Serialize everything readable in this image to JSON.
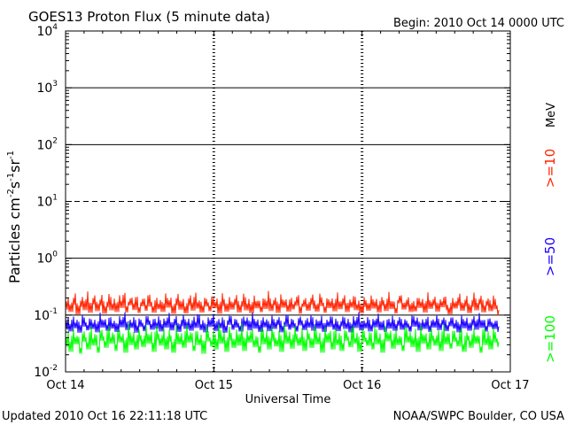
{
  "header": {
    "title": "GOES13 Proton Flux (5 minute data)",
    "begin": "Begin: 2010 Oct 14 0000 UTC"
  },
  "footer": {
    "updated": "Updated 2010 Oct 16 22:11:18 UTC",
    "credit": "NOAA/SWPC Boulder, CO USA"
  },
  "chart_data": {
    "type": "line",
    "title": "GOES13 Proton Flux (5 minute data)",
    "xlabel": "Universal Time",
    "ylabel": "Particles cm-2 s-1 sr-1",
    "yscale": "log",
    "ylim": [
      0.01,
      10000
    ],
    "xlim": [
      0,
      3
    ],
    "x_ticks": [
      {
        "value": 0,
        "label": "Oct 14"
      },
      {
        "value": 1,
        "label": "Oct 15"
      },
      {
        "value": 2,
        "label": "Oct 16"
      },
      {
        "value": 3,
        "label": "Oct 17"
      }
    ],
    "y_ticks": [
      {
        "value": 0.01,
        "base": "10",
        "exp": "-2"
      },
      {
        "value": 0.1,
        "base": "10",
        "exp": "-1"
      },
      {
        "value": 1,
        "base": "10",
        "exp": "0"
      },
      {
        "value": 10,
        "base": "10",
        "exp": "1"
      },
      {
        "value": 100,
        "base": "10",
        "exp": "2"
      },
      {
        "value": 1000,
        "base": "10",
        "exp": "3"
      },
      {
        "value": 10000,
        "base": "10",
        "exp": "4"
      }
    ],
    "threshold_lines": [
      {
        "value": 1000,
        "style": "solid"
      },
      {
        "value": 100,
        "style": "solid"
      },
      {
        "value": 10,
        "style": "dashed"
      },
      {
        "value": 1,
        "style": "solid"
      },
      {
        "value": 0.1,
        "style": "solid"
      }
    ],
    "units_label": "MeV",
    "series": [
      {
        "name": ">=10",
        "color": "#ff2200",
        "values": [
          0.155,
          0.205,
          0.142,
          0.188,
          0.241,
          0.128,
          0.173,
          0.214,
          0.152,
          0.266,
          0.137,
          0.192,
          0.224,
          0.146,
          0.182,
          0.235,
          0.132,
          0.171,
          0.258,
          0.151,
          0.199,
          0.141,
          0.229,
          0.166,
          0.281,
          0.139,
          0.186,
          0.212,
          0.153,
          0.244,
          0.136,
          0.178,
          0.207,
          0.148,
          0.261,
          0.176,
          0.137,
          0.219,
          0.158,
          0.193,
          0.142,
          0.251,
          0.168,
          0.208,
          0.131,
          0.185,
          0.238,
          0.155,
          0.201,
          0.134,
          0.182,
          0.226,
          0.149,
          0.271,
          0.162,
          0.191,
          0.138,
          0.215,
          0.176,
          0.146,
          0.238,
          0.165,
          0.199,
          0.132,
          0.248,
          0.178,
          0.143,
          0.211,
          0.156,
          0.186,
          0.232,
          0.139,
          0.174,
          0.259,
          0.151,
          0.196,
          0.135,
          0.227,
          0.164,
          0.191,
          0.141,
          0.218,
          0.159,
          0.278,
          0.147,
          0.183,
          0.209,
          0.136,
          0.236,
          0.168,
          0.196,
          0.143,
          0.221,
          0.157,
          0.181,
          0.247,
          0.132,
          0.175,
          0.204,
          0.149,
          0.189,
          0.231,
          0.161,
          0.144,
          0.252,
          0.179,
          0.137,
          0.214,
          0.166,
          0.198,
          0.145,
          0.263,
          0.158,
          0.186,
          0.225,
          0.141,
          0.193,
          0.169,
          0.242,
          0.152,
          0.187,
          0.134,
          0.208,
          0.173,
          0.149,
          0.232,
          0.162,
          0.195,
          0.139,
          0.216,
          0.181,
          0.147,
          0.268,
          0.159,
          0.188,
          0.133,
          0.202,
          0.239,
          0.156,
          0.174,
          0.211,
          0.142,
          0.186,
          0.145,
          0.224,
          0.167,
          0.197,
          0.138,
          0.256,
          0.161,
          0.184,
          0.213,
          0.143,
          0.192,
          0.171,
          0.235,
          0.152,
          0.129,
          0.208,
          0.163,
          0.183,
          0.245,
          0.148,
          0.176,
          0.219,
          0.135,
          0.172,
          0.261,
          0.151,
          0.192,
          0.228,
          0.139,
          0.181,
          0.205,
          0.146,
          0.236,
          0.158,
          0.123
        ]
      },
      {
        "name": ">=50",
        "color": "#1a00ff",
        "values": [
          0.069,
          0.092,
          0.064,
          0.101,
          0.073,
          0.087,
          0.061,
          0.108,
          0.078,
          0.067,
          0.095,
          0.071,
          0.084,
          0.062,
          0.112,
          0.075,
          0.089,
          0.066,
          0.103,
          0.072,
          0.081,
          0.063,
          0.097,
          0.076,
          0.118,
          0.068,
          0.086,
          0.074,
          0.099,
          0.061,
          0.091,
          0.077,
          0.065,
          0.106,
          0.083,
          0.069,
          0.094,
          0.072,
          0.101,
          0.064,
          0.088,
          0.075,
          0.115,
          0.067,
          0.082,
          0.096,
          0.063,
          0.079,
          0.104,
          0.071,
          0.087,
          0.066,
          0.098,
          0.074,
          0.121,
          0.068,
          0.085,
          0.062,
          0.093,
          0.077,
          0.109,
          0.065,
          0.089,
          0.073,
          0.099,
          0.061,
          0.084,
          0.107,
          0.069,
          0.091,
          0.075,
          0.064,
          0.102,
          0.079,
          0.094,
          0.067,
          0.113,
          0.072,
          0.086,
          0.063,
          0.097,
          0.076,
          0.088,
          0.065,
          0.105,
          0.071,
          0.083,
          0.095,
          0.062,
          0.078,
          0.116,
          0.069,
          0.091,
          0.074,
          0.064,
          0.101,
          0.082,
          0.068,
          0.093,
          0.075,
          0.111,
          0.066,
          0.087,
          0.072,
          0.098,
          0.063,
          0.084,
          0.077,
          0.106,
          0.069,
          0.092,
          0.065,
          0.079,
          0.102,
          0.071,
          0.089,
          0.062,
          0.096,
          0.074,
          0.119,
          0.067,
          0.083,
          0.073,
          0.099,
          0.064,
          0.088,
          0.076,
          0.108,
          0.068,
          0.085,
          0.063,
          0.094,
          0.072,
          0.103,
          0.066,
          0.081,
          0.097,
          0.069,
          0.087,
          0.074,
          0.064,
          0.111,
          0.078,
          0.092,
          0.067,
          0.085,
          0.071,
          0.101,
          0.063,
          0.089,
          0.075,
          0.107,
          0.068,
          0.083,
          0.094,
          0.065,
          0.079,
          0.099,
          0.072,
          0.086,
          0.062,
          0.104,
          0.073,
          0.091,
          0.066,
          0.082,
          0.097,
          0.069,
          0.112,
          0.074,
          0.088,
          0.064,
          0.095,
          0.077,
          0.071,
          0.086,
          0.063
        ]
      },
      {
        "name": ">=100",
        "color": "#00ff00",
        "values": [
          0.034,
          0.052,
          0.028,
          0.061,
          0.038,
          0.047,
          0.026,
          0.058,
          0.042,
          0.031,
          0.069,
          0.036,
          0.053,
          0.027,
          0.063,
          0.044,
          0.033,
          0.071,
          0.039,
          0.055,
          0.029,
          0.064,
          0.041,
          0.048,
          0.027,
          0.076,
          0.037,
          0.052,
          0.031,
          0.059,
          0.043,
          0.034,
          0.066,
          0.039,
          0.054,
          0.028,
          0.072,
          0.045,
          0.036,
          0.061,
          0.031,
          0.057,
          0.042,
          0.027,
          0.068,
          0.038,
          0.049,
          0.033,
          0.073,
          0.041,
          0.056,
          0.029,
          0.062,
          0.037,
          0.047,
          0.026,
          0.067,
          0.043,
          0.035,
          0.058,
          0.031,
          0.075,
          0.039,
          0.052,
          0.028,
          0.064,
          0.044,
          0.033,
          0.059,
          0.036,
          0.071,
          0.029,
          0.054,
          0.041,
          0.062,
          0.034,
          0.048,
          0.027,
          0.069,
          0.038,
          0.056,
          0.031,
          0.065,
          0.043,
          0.035,
          0.059,
          0.028,
          0.074,
          0.039,
          0.051,
          0.032,
          0.066,
          0.042,
          0.036,
          0.061,
          0.029,
          0.055,
          0.045,
          0.033,
          0.072,
          0.038,
          0.049,
          0.027,
          0.063,
          0.041,
          0.057,
          0.031,
          0.068,
          0.037,
          0.053,
          0.029,
          0.061,
          0.044,
          0.034,
          0.076,
          0.039,
          0.052,
          0.028,
          0.064,
          0.042,
          0.036,
          0.058,
          0.031,
          0.071,
          0.038,
          0.049,
          0.027,
          0.066,
          0.043,
          0.055,
          0.032,
          0.062,
          0.037,
          0.047,
          0.029,
          0.073,
          0.041,
          0.053,
          0.034,
          0.059,
          0.028,
          0.068,
          0.039,
          0.051,
          0.031,
          0.064,
          0.043,
          0.036,
          0.057,
          0.029,
          0.075,
          0.038,
          0.054,
          0.032,
          0.061,
          0.042,
          0.035,
          0.067,
          0.028,
          0.052,
          0.044,
          0.033,
          0.062,
          0.039,
          0.048,
          0.027,
          0.071,
          0.037,
          0.056,
          0.031,
          0.064,
          0.041,
          0.034
        ]
      }
    ]
  }
}
